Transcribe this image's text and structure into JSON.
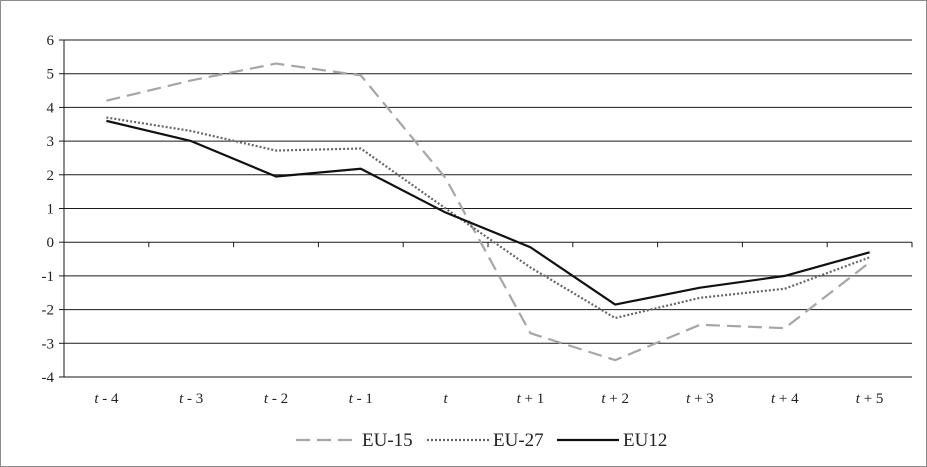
{
  "chart_data": {
    "type": "line",
    "title": "",
    "xlabel": "",
    "ylabel": "",
    "ylim": [
      -4,
      6
    ],
    "yticks": [
      "6",
      "5",
      "4",
      "3",
      "2",
      "1",
      "0",
      "-1",
      "-2",
      "-3",
      "-4"
    ],
    "grid": "horizontal",
    "legend_position": "bottom",
    "categories": [
      {
        "var": "t",
        "suffix": " - 4"
      },
      {
        "var": "t",
        "suffix": " - 3"
      },
      {
        "var": "t",
        "suffix": " - 2"
      },
      {
        "var": "t",
        "suffix": " - 1"
      },
      {
        "var": "t",
        "suffix": ""
      },
      {
        "var": "t",
        "suffix": " + 1"
      },
      {
        "var": "t",
        "suffix": " + 2"
      },
      {
        "var": "t",
        "suffix": " + 3"
      },
      {
        "var": "t",
        "suffix": " + 4"
      },
      {
        "var": "t",
        "suffix": " + 5"
      }
    ],
    "series": [
      {
        "name": "EU-15",
        "color": "#a6a6a6",
        "style": "dashed",
        "values": [
          4.2,
          4.8,
          5.3,
          4.95,
          1.9,
          -2.7,
          -3.5,
          -2.45,
          -2.55,
          -0.6
        ]
      },
      {
        "name": "EU-27",
        "color": "#666666",
        "style": "dotted",
        "values": [
          3.7,
          3.3,
          2.72,
          2.78,
          1.0,
          -0.75,
          -2.25,
          -1.65,
          -1.38,
          -0.45
        ]
      },
      {
        "name": "EU12",
        "color": "#111111",
        "style": "solid",
        "values": [
          3.6,
          3.0,
          1.95,
          2.18,
          0.88,
          -0.15,
          -1.85,
          -1.35,
          -1.0,
          -0.3
        ]
      }
    ]
  }
}
